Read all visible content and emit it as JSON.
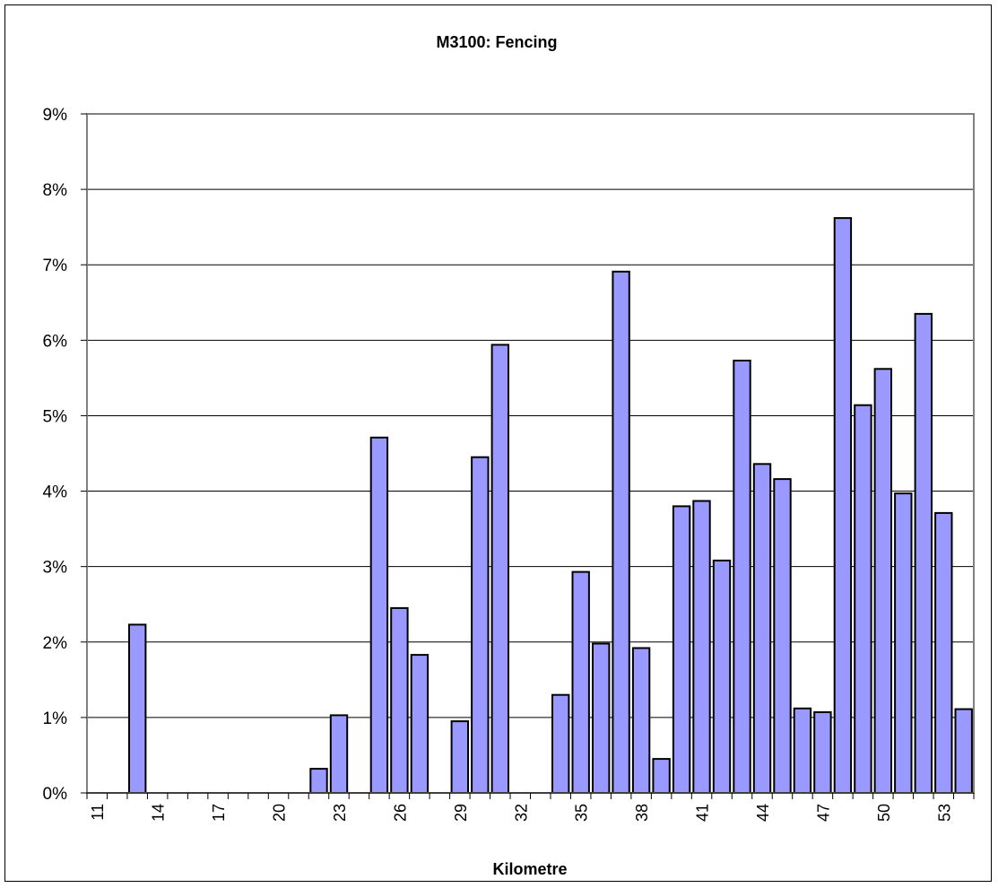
{
  "chart_data": {
    "type": "bar",
    "title": "M3100: Fencing",
    "xlabel": "Kilometre",
    "ylabel": "",
    "ylim": [
      0,
      9
    ],
    "y_unit": "%",
    "yticks": [
      "0%",
      "1%",
      "2%",
      "3%",
      "4%",
      "5%",
      "6%",
      "7%",
      "8%",
      "9%"
    ],
    "xticks": [
      "11",
      "14",
      "17",
      "20",
      "23",
      "26",
      "29",
      "32",
      "35",
      "38",
      "41",
      "44",
      "47",
      "50",
      "53"
    ],
    "grid": "horizontal",
    "categories": [
      11,
      12,
      13,
      14,
      15,
      16,
      17,
      18,
      19,
      20,
      21,
      22,
      23,
      24,
      25,
      26,
      27,
      28,
      29,
      30,
      31,
      32,
      33,
      34,
      35,
      36,
      37,
      38,
      39,
      40,
      41,
      42,
      43,
      44,
      45,
      46,
      47,
      48,
      49,
      50,
      51,
      52,
      53,
      54
    ],
    "values": [
      0,
      0,
      2.23,
      0,
      0,
      0,
      0,
      0,
      0,
      0,
      0,
      0.32,
      1.03,
      0,
      4.71,
      2.45,
      1.83,
      0,
      0.95,
      4.45,
      5.94,
      0,
      0,
      1.3,
      2.93,
      1.98,
      6.91,
      1.92,
      0.45,
      3.8,
      3.87,
      3.08,
      5.73,
      4.36,
      4.16,
      1.12,
      1.07,
      7.62,
      5.14,
      5.62,
      3.97,
      6.35,
      3.71,
      1.11
    ],
    "bar_color": "#9999ff",
    "bar_edge_color": "#000000",
    "plot_border_color": "#808080"
  }
}
